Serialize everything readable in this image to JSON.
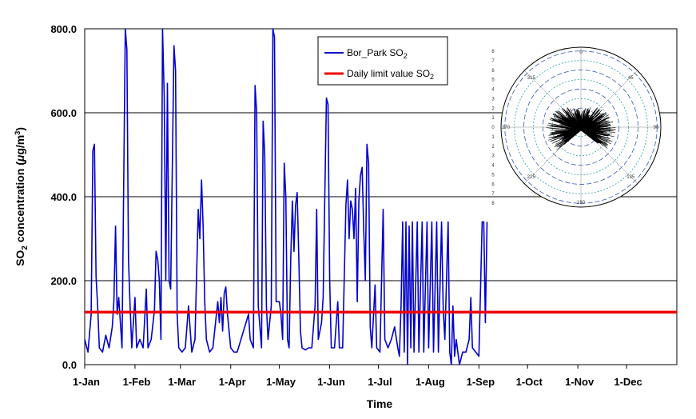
{
  "chart_data": {
    "type": "line",
    "ylabel_main": "SO",
    "ylabel_sub": "2",
    "ylabel_tail": " concentration (",
    "ylabel_mu": "μ",
    "ylabel_unit": "g/m",
    "ylabel_sup": "3",
    "ylabel_close": ")",
    "xlabel": "Time",
    "ylim": [
      0,
      800
    ],
    "y_ticks": [
      "0.0",
      "200.0",
      "400.0",
      "600.0",
      "800.0"
    ],
    "x_ticks": [
      "1-Jan",
      "1-Feb",
      "1-Mar",
      "1-Apr",
      "1-May",
      "1-Jun",
      "1-Jul",
      "1-Aug",
      "1-Sep",
      "1-Oct",
      "1-Nov",
      "1-Dec"
    ],
    "gridlines": "horizontal",
    "legend_position": "top-right",
    "series": [
      {
        "name": "Bor_Park SO2",
        "legend_main": "Bor_Park SO",
        "legend_sub": "2",
        "color": "#0000cc",
        "points": [
          [
            "1-Jan",
            60
          ],
          [
            "3-Jan",
            30
          ],
          [
            "5-Jan",
            120
          ],
          [
            "6-Jan",
            510
          ],
          [
            "7-Jan",
            525
          ],
          [
            "8-Jan",
            210
          ],
          [
            "9-Jan",
            140
          ],
          [
            "10-Jan",
            40
          ],
          [
            "12-Jan",
            30
          ],
          [
            "14-Jan",
            70
          ],
          [
            "16-Jan",
            40
          ],
          [
            "18-Jan",
            90
          ],
          [
            "19-Jan",
            150
          ],
          [
            "20-Jan",
            330
          ],
          [
            "21-Jan",
            120
          ],
          [
            "22-Jan",
            160
          ],
          [
            "24-Jan",
            40
          ],
          [
            "26-Jan",
            800
          ],
          [
            "27-Jan",
            750
          ],
          [
            "28-Jan",
            250
          ],
          [
            "29-Jan",
            140
          ],
          [
            "30-Jan",
            40
          ],
          [
            "1-Feb",
            160
          ],
          [
            "2-Feb",
            40
          ],
          [
            "4-Feb",
            60
          ],
          [
            "6-Feb",
            40
          ],
          [
            "8-Feb",
            180
          ],
          [
            "9-Feb",
            40
          ],
          [
            "11-Feb",
            60
          ],
          [
            "13-Feb",
            130
          ],
          [
            "14-Feb",
            270
          ],
          [
            "15-Feb",
            250
          ],
          [
            "16-Feb",
            200
          ],
          [
            "17-Feb",
            60
          ],
          [
            "18-Feb",
            800
          ],
          [
            "19-Feb",
            640
          ],
          [
            "20-Feb",
            200
          ],
          [
            "21-Feb",
            670
          ],
          [
            "22-Feb",
            200
          ],
          [
            "23-Feb",
            180
          ],
          [
            "25-Feb",
            760
          ],
          [
            "26-Feb",
            700
          ],
          [
            "27-Feb",
            120
          ],
          [
            "28-Feb",
            40
          ],
          [
            "2-Mar",
            30
          ],
          [
            "4-Mar",
            40
          ],
          [
            "6-Mar",
            140
          ],
          [
            "8-Mar",
            30
          ],
          [
            "10-Mar",
            60
          ],
          [
            "12-Mar",
            370
          ],
          [
            "13-Mar",
            300
          ],
          [
            "14-Mar",
            440
          ],
          [
            "15-Mar",
            330
          ],
          [
            "16-Mar",
            150
          ],
          [
            "17-Mar",
            60
          ],
          [
            "19-Mar",
            30
          ],
          [
            "21-Mar",
            40
          ],
          [
            "24-Mar",
            150
          ],
          [
            "25-Mar",
            100
          ],
          [
            "26-Mar",
            160
          ],
          [
            "27-Mar",
            80
          ],
          [
            "28-Mar",
            170
          ],
          [
            "29-Mar",
            185
          ],
          [
            "30-Mar",
            120
          ],
          [
            "1-Apr",
            40
          ],
          [
            "3-Apr",
            30
          ],
          [
            "5-Apr",
            30
          ],
          [
            "12-Apr",
            120
          ],
          [
            "13-Apr",
            60
          ],
          [
            "15-Apr",
            40
          ],
          [
            "16-Apr",
            665
          ],
          [
            "17-Apr",
            600
          ],
          [
            "18-Apr",
            140
          ],
          [
            "20-Apr",
            40
          ],
          [
            "21-Apr",
            580
          ],
          [
            "22-Apr",
            500
          ],
          [
            "23-Apr",
            140
          ],
          [
            "24-Apr",
            60
          ],
          [
            "26-Apr",
            140
          ],
          [
            "27-Apr",
            800
          ],
          [
            "28-Apr",
            780
          ],
          [
            "29-Apr",
            150
          ],
          [
            "1-May",
            150
          ],
          [
            "2-May",
            120
          ],
          [
            "3-May",
            60
          ],
          [
            "4-May",
            480
          ],
          [
            "5-May",
            400
          ],
          [
            "6-May",
            60
          ],
          [
            "7-May",
            40
          ],
          [
            "8-May",
            250
          ],
          [
            "9-May",
            390
          ],
          [
            "10-May",
            270
          ],
          [
            "11-May",
            380
          ],
          [
            "12-May",
            410
          ],
          [
            "13-May",
            250
          ],
          [
            "14-May",
            80
          ],
          [
            "15-May",
            40
          ],
          [
            "17-May",
            35
          ],
          [
            "19-May",
            40
          ],
          [
            "21-May",
            40
          ],
          [
            "23-May",
            140
          ],
          [
            "24-May",
            370
          ],
          [
            "25-May",
            60
          ],
          [
            "27-May",
            100
          ],
          [
            "28-May",
            160
          ],
          [
            "30-May",
            635
          ],
          [
            "31-May",
            620
          ],
          [
            "1-Jun",
            200
          ],
          [
            "2-Jun",
            40
          ],
          [
            "4-Jun",
            40
          ],
          [
            "6-Jun",
            150
          ],
          [
            "7-Jun",
            40
          ],
          [
            "9-Jun",
            40
          ],
          [
            "11-Jun",
            380
          ],
          [
            "12-Jun",
            440
          ],
          [
            "13-Jun",
            300
          ],
          [
            "14-Jun",
            390
          ],
          [
            "15-Jun",
            370
          ],
          [
            "16-Jun",
            300
          ],
          [
            "17-Jun",
            420
          ],
          [
            "18-Jun",
            150
          ],
          [
            "19-Jun",
            390
          ],
          [
            "20-Jun",
            450
          ],
          [
            "21-Jun",
            470
          ],
          [
            "22-Jun",
            320
          ],
          [
            "23-Jun",
            200
          ],
          [
            "24-Jun",
            525
          ],
          [
            "25-Jun",
            480
          ],
          [
            "26-Jun",
            90
          ],
          [
            "27-Jun",
            40
          ],
          [
            "29-Jun",
            190
          ],
          [
            "30-Jun",
            40
          ],
          [
            "2-Jul",
            30
          ],
          [
            "4-Jul",
            370
          ],
          [
            "5-Jul",
            60
          ],
          [
            "7-Jul",
            40
          ],
          [
            "9-Jul",
            60
          ],
          [
            "11-Jul",
            90
          ],
          [
            "13-Jul",
            40
          ],
          [
            "14-Jul",
            20
          ],
          [
            "15-Jul",
            140
          ],
          [
            "16-Jul",
            340
          ],
          [
            "17-Jul",
            30
          ],
          [
            "18-Jul",
            340
          ],
          [
            "19-Jul",
            0
          ],
          [
            "20-Jul",
            330
          ],
          [
            "21-Jul",
            40
          ],
          [
            "22-Jul",
            340
          ],
          [
            "23-Jul",
            30
          ],
          [
            "25-Jul",
            340
          ],
          [
            "26-Jul",
            30
          ],
          [
            "28-Jul",
            340
          ],
          [
            "29-Jul",
            30
          ],
          [
            "31-Jul",
            340
          ],
          [
            "1-Aug",
            40
          ],
          [
            "3-Aug",
            340
          ],
          [
            "4-Aug",
            30
          ],
          [
            "6-Aug",
            340
          ],
          [
            "7-Aug",
            30
          ],
          [
            "9-Aug",
            340
          ],
          [
            "10-Aug",
            130
          ],
          [
            "11-Aug",
            60
          ],
          [
            "13-Aug",
            340
          ],
          [
            "14-Aug",
            30
          ],
          [
            "15-Aug",
            0
          ],
          [
            "16-Aug",
            140
          ],
          [
            "17-Aug",
            20
          ],
          [
            "18-Aug",
            60
          ],
          [
            "20-Aug",
            0
          ],
          [
            "22-Aug",
            30
          ],
          [
            "24-Aug",
            30
          ],
          [
            "26-Aug",
            60
          ],
          [
            "27-Aug",
            160
          ],
          [
            "28-Aug",
            40
          ],
          [
            "30-Aug",
            30
          ],
          [
            "1-Sep",
            20
          ],
          [
            "3-Sep",
            340
          ],
          [
            "4-Sep",
            340
          ],
          [
            "5-Sep",
            100
          ],
          [
            "6-Sep",
            340
          ]
        ]
      },
      {
        "name": "Daily limit value SO2",
        "legend_main": "Daily limit value SO",
        "legend_sub": "2",
        "color": "#ee0000",
        "constant": 125
      }
    ],
    "inset": {
      "type": "polar",
      "angle_labels": [
        "0",
        "45",
        "90",
        "135",
        "180",
        "225",
        "270",
        "315"
      ],
      "radial_labels": [
        "8",
        "7",
        "6",
        "5",
        "4",
        "3",
        "2",
        "1",
        "0",
        "1",
        "2",
        "3",
        "4",
        "5",
        "6",
        "7",
        "8"
      ]
    }
  }
}
